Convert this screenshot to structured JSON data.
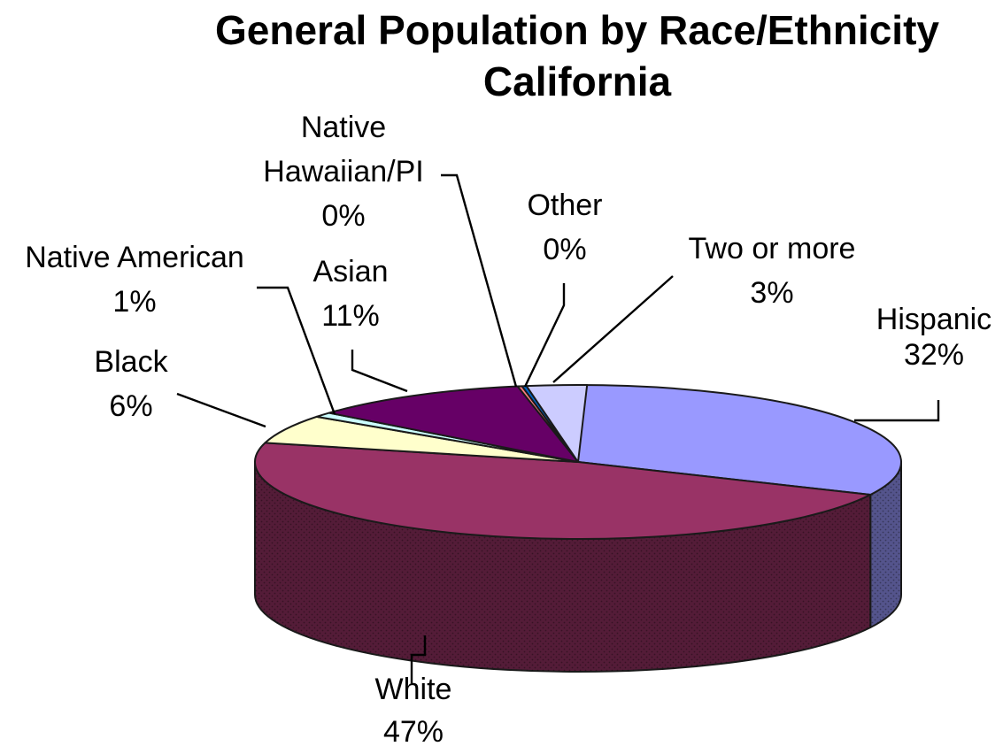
{
  "chart_data": {
    "type": "pie",
    "title": "General Population by Race/Ethnicity",
    "subtitle": "California",
    "legend": "none",
    "slices": [
      {
        "key": "hispanic",
        "label": "Hispanic",
        "value": 32,
        "value_label": "32%",
        "color": "#9999ff"
      },
      {
        "key": "white",
        "label": "White",
        "value": 47,
        "value_label": "47%",
        "color": "#993366"
      },
      {
        "key": "black",
        "label": "Black",
        "value": 6,
        "value_label": "6%",
        "color": "#ffffcc"
      },
      {
        "key": "native_american",
        "label": "Native American",
        "value": 1,
        "value_label": "1%",
        "color": "#ccffff"
      },
      {
        "key": "asian",
        "label": "Asian",
        "value": 11,
        "value_label": "11%",
        "color": "#660066"
      },
      {
        "key": "native_hawaiian_pi",
        "label": "Native Hawaiian/PI",
        "label_lines": [
          "Native",
          "Hawaiian/PI"
        ],
        "value": 0,
        "value_label": "0%",
        "color": "#ff8080"
      },
      {
        "key": "other",
        "label": "Other",
        "value": 0,
        "value_label": "0%",
        "color": "#0066cc"
      },
      {
        "key": "two_or_more",
        "label": "Two or more",
        "value": 3,
        "value_label": "3%",
        "color": "#ccccff"
      }
    ]
  }
}
